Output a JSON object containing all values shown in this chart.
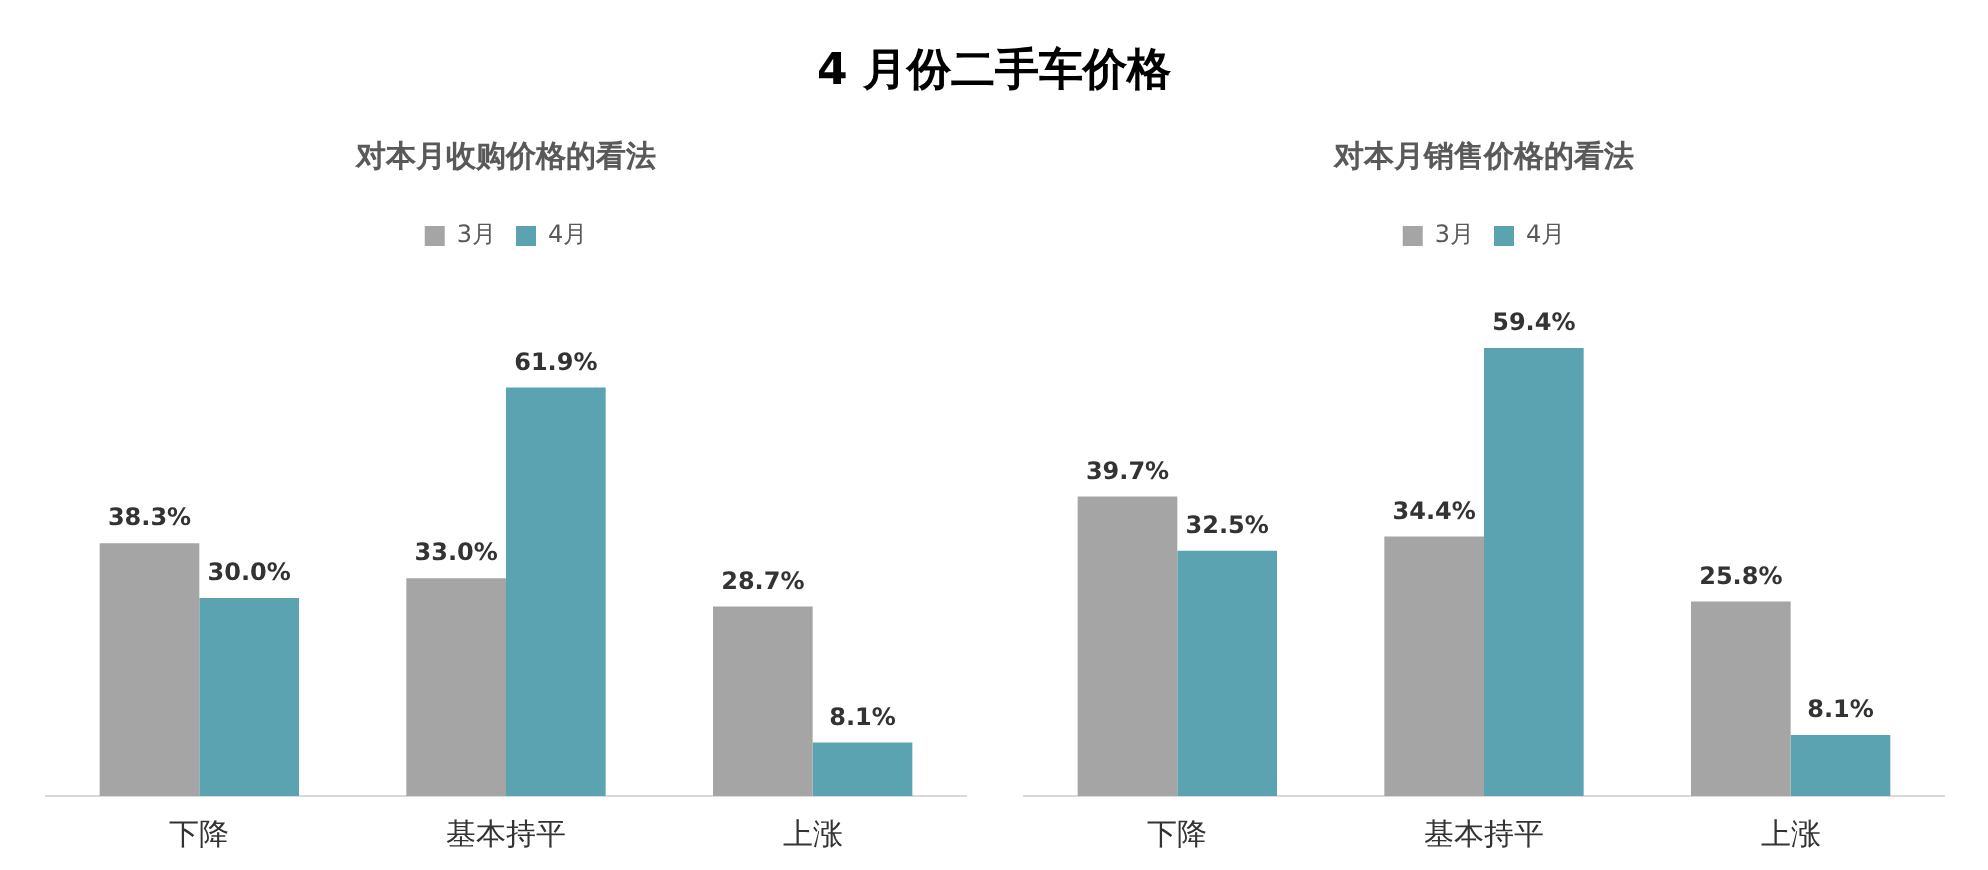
{
  "chart_data": [
    {
      "type": "other",
      "title": "4 月份二手车价格"
    },
    {
      "type": "bar",
      "title": "对本月收购价格的看法",
      "categories": [
        "下降",
        "基本持平",
        "上涨"
      ],
      "series": [
        {
          "name": "3月",
          "color": "#a5a5a5",
          "values": [
            38.3,
            33.0,
            28.7
          ],
          "value_labels": [
            "38.3%",
            "33.0%",
            "28.7%"
          ]
        },
        {
          "name": "4月",
          "color": "#5ba3b0",
          "values": [
            30.0,
            61.9,
            8.1
          ],
          "value_labels": [
            "30.0%",
            "61.9%",
            "8.1%"
          ]
        }
      ],
      "legend": "top",
      "grid": false
    },
    {
      "type": "bar",
      "title": "对本月销售价格的看法",
      "categories": [
        "下降",
        "基本持平",
        "上涨"
      ],
      "series": [
        {
          "name": "3月",
          "color": "#a5a5a5",
          "values": [
            39.7,
            34.4,
            25.8
          ],
          "value_labels": [
            "39.7%",
            "34.4%",
            "25.8%"
          ]
        },
        {
          "name": "4月",
          "color": "#5ba3b0",
          "values": [
            32.5,
            59.4,
            8.1
          ],
          "value_labels": [
            "32.5%",
            "59.4%",
            "8.1%"
          ]
        }
      ],
      "legend": "top",
      "grid": false
    }
  ]
}
